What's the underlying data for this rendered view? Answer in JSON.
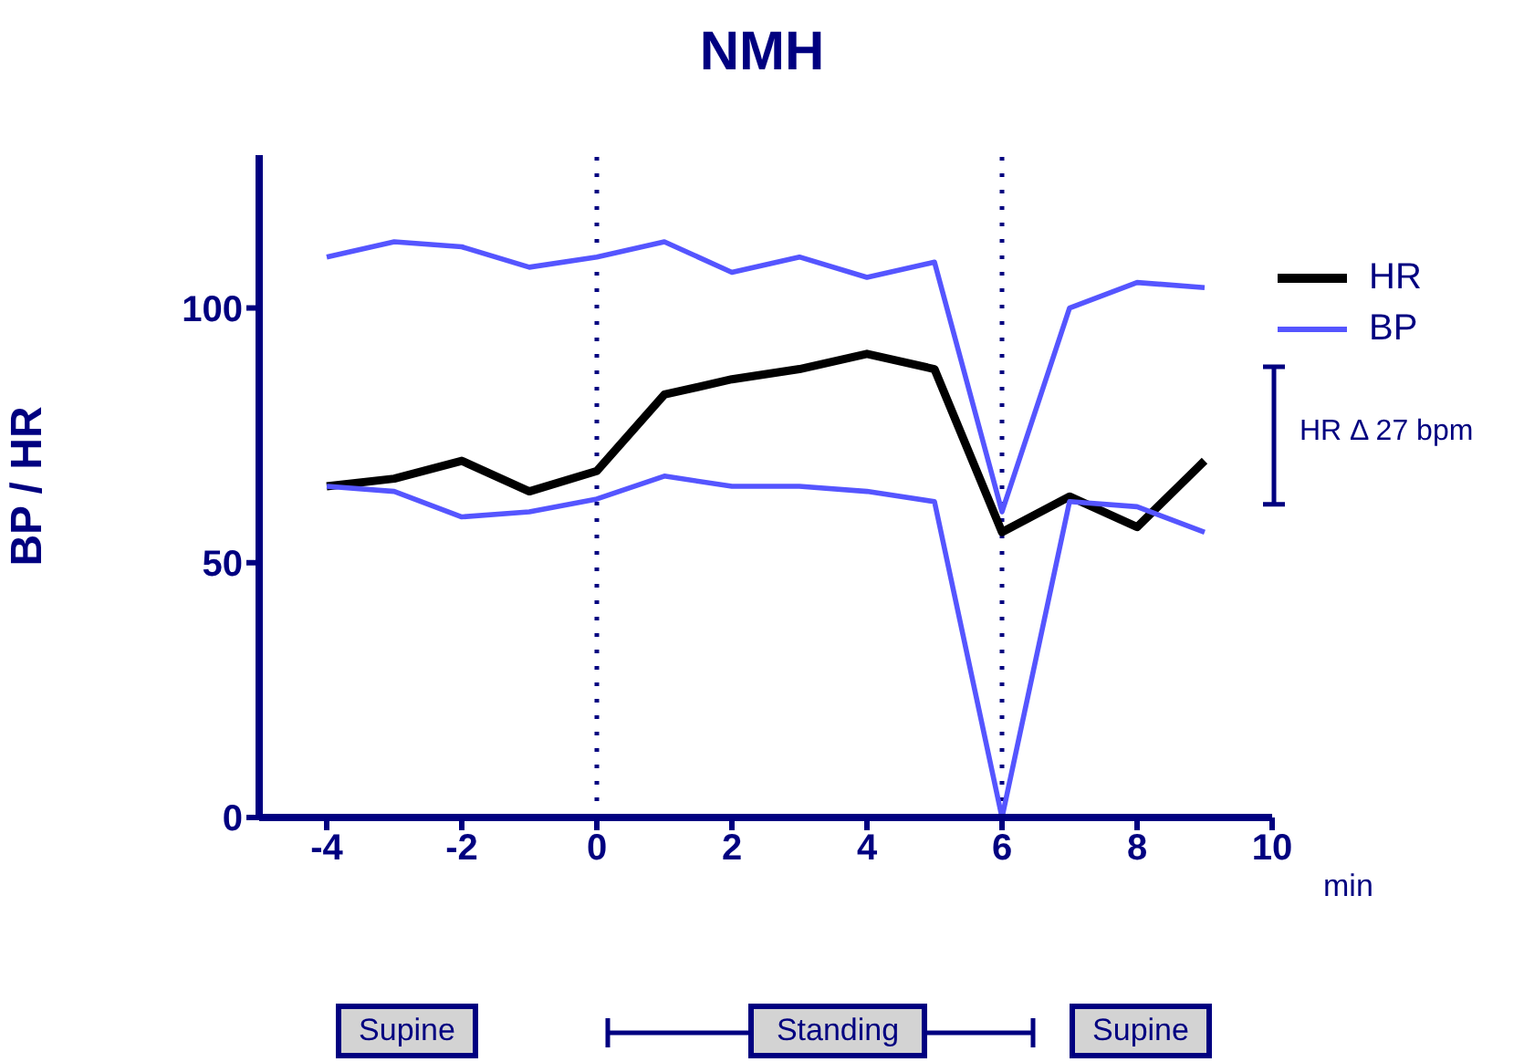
{
  "chart_data": {
    "type": "line",
    "title": "NMH",
    "xlabel": "min",
    "ylabel": "BP / HR",
    "x": [
      -4,
      -3,
      -2,
      -1,
      0,
      1,
      2,
      3,
      4,
      5,
      6,
      7,
      8,
      9
    ],
    "series": [
      {
        "name": "HR",
        "color": "#000000",
        "values": [
          65,
          66.5,
          70,
          64,
          68,
          83,
          86,
          88,
          91,
          88,
          56,
          63,
          57,
          70
        ]
      },
      {
        "name": "BP",
        "color": "#5555ff",
        "values": [
          110,
          113,
          112,
          108,
          110,
          113,
          107,
          110,
          106,
          109,
          60,
          100,
          105,
          104
        ]
      },
      {
        "color": "#5555ff",
        "values": [
          65,
          64,
          59,
          60,
          62.5,
          67,
          65,
          65,
          64,
          62,
          0,
          62,
          61,
          56
        ]
      }
    ],
    "xlim": [
      -5,
      10
    ],
    "xticks": [
      -4,
      -2,
      0,
      2,
      4,
      6,
      8,
      10
    ],
    "ylim": [
      0,
      130
    ],
    "yticks": [
      0,
      50,
      100
    ],
    "ref_lines": [
      {
        "axis": "x",
        "value": 0,
        "color": "#000080",
        "line_style": "dotted"
      },
      {
        "axis": "x",
        "value": 6,
        "color": "#000080",
        "line_style": "dotted"
      }
    ],
    "annotations": [
      "HR Δ 27 bpm",
      "Supine",
      "Standing",
      "Supine"
    ],
    "legend": "top right",
    "marker": "none",
    "line_style": "solid"
  }
}
